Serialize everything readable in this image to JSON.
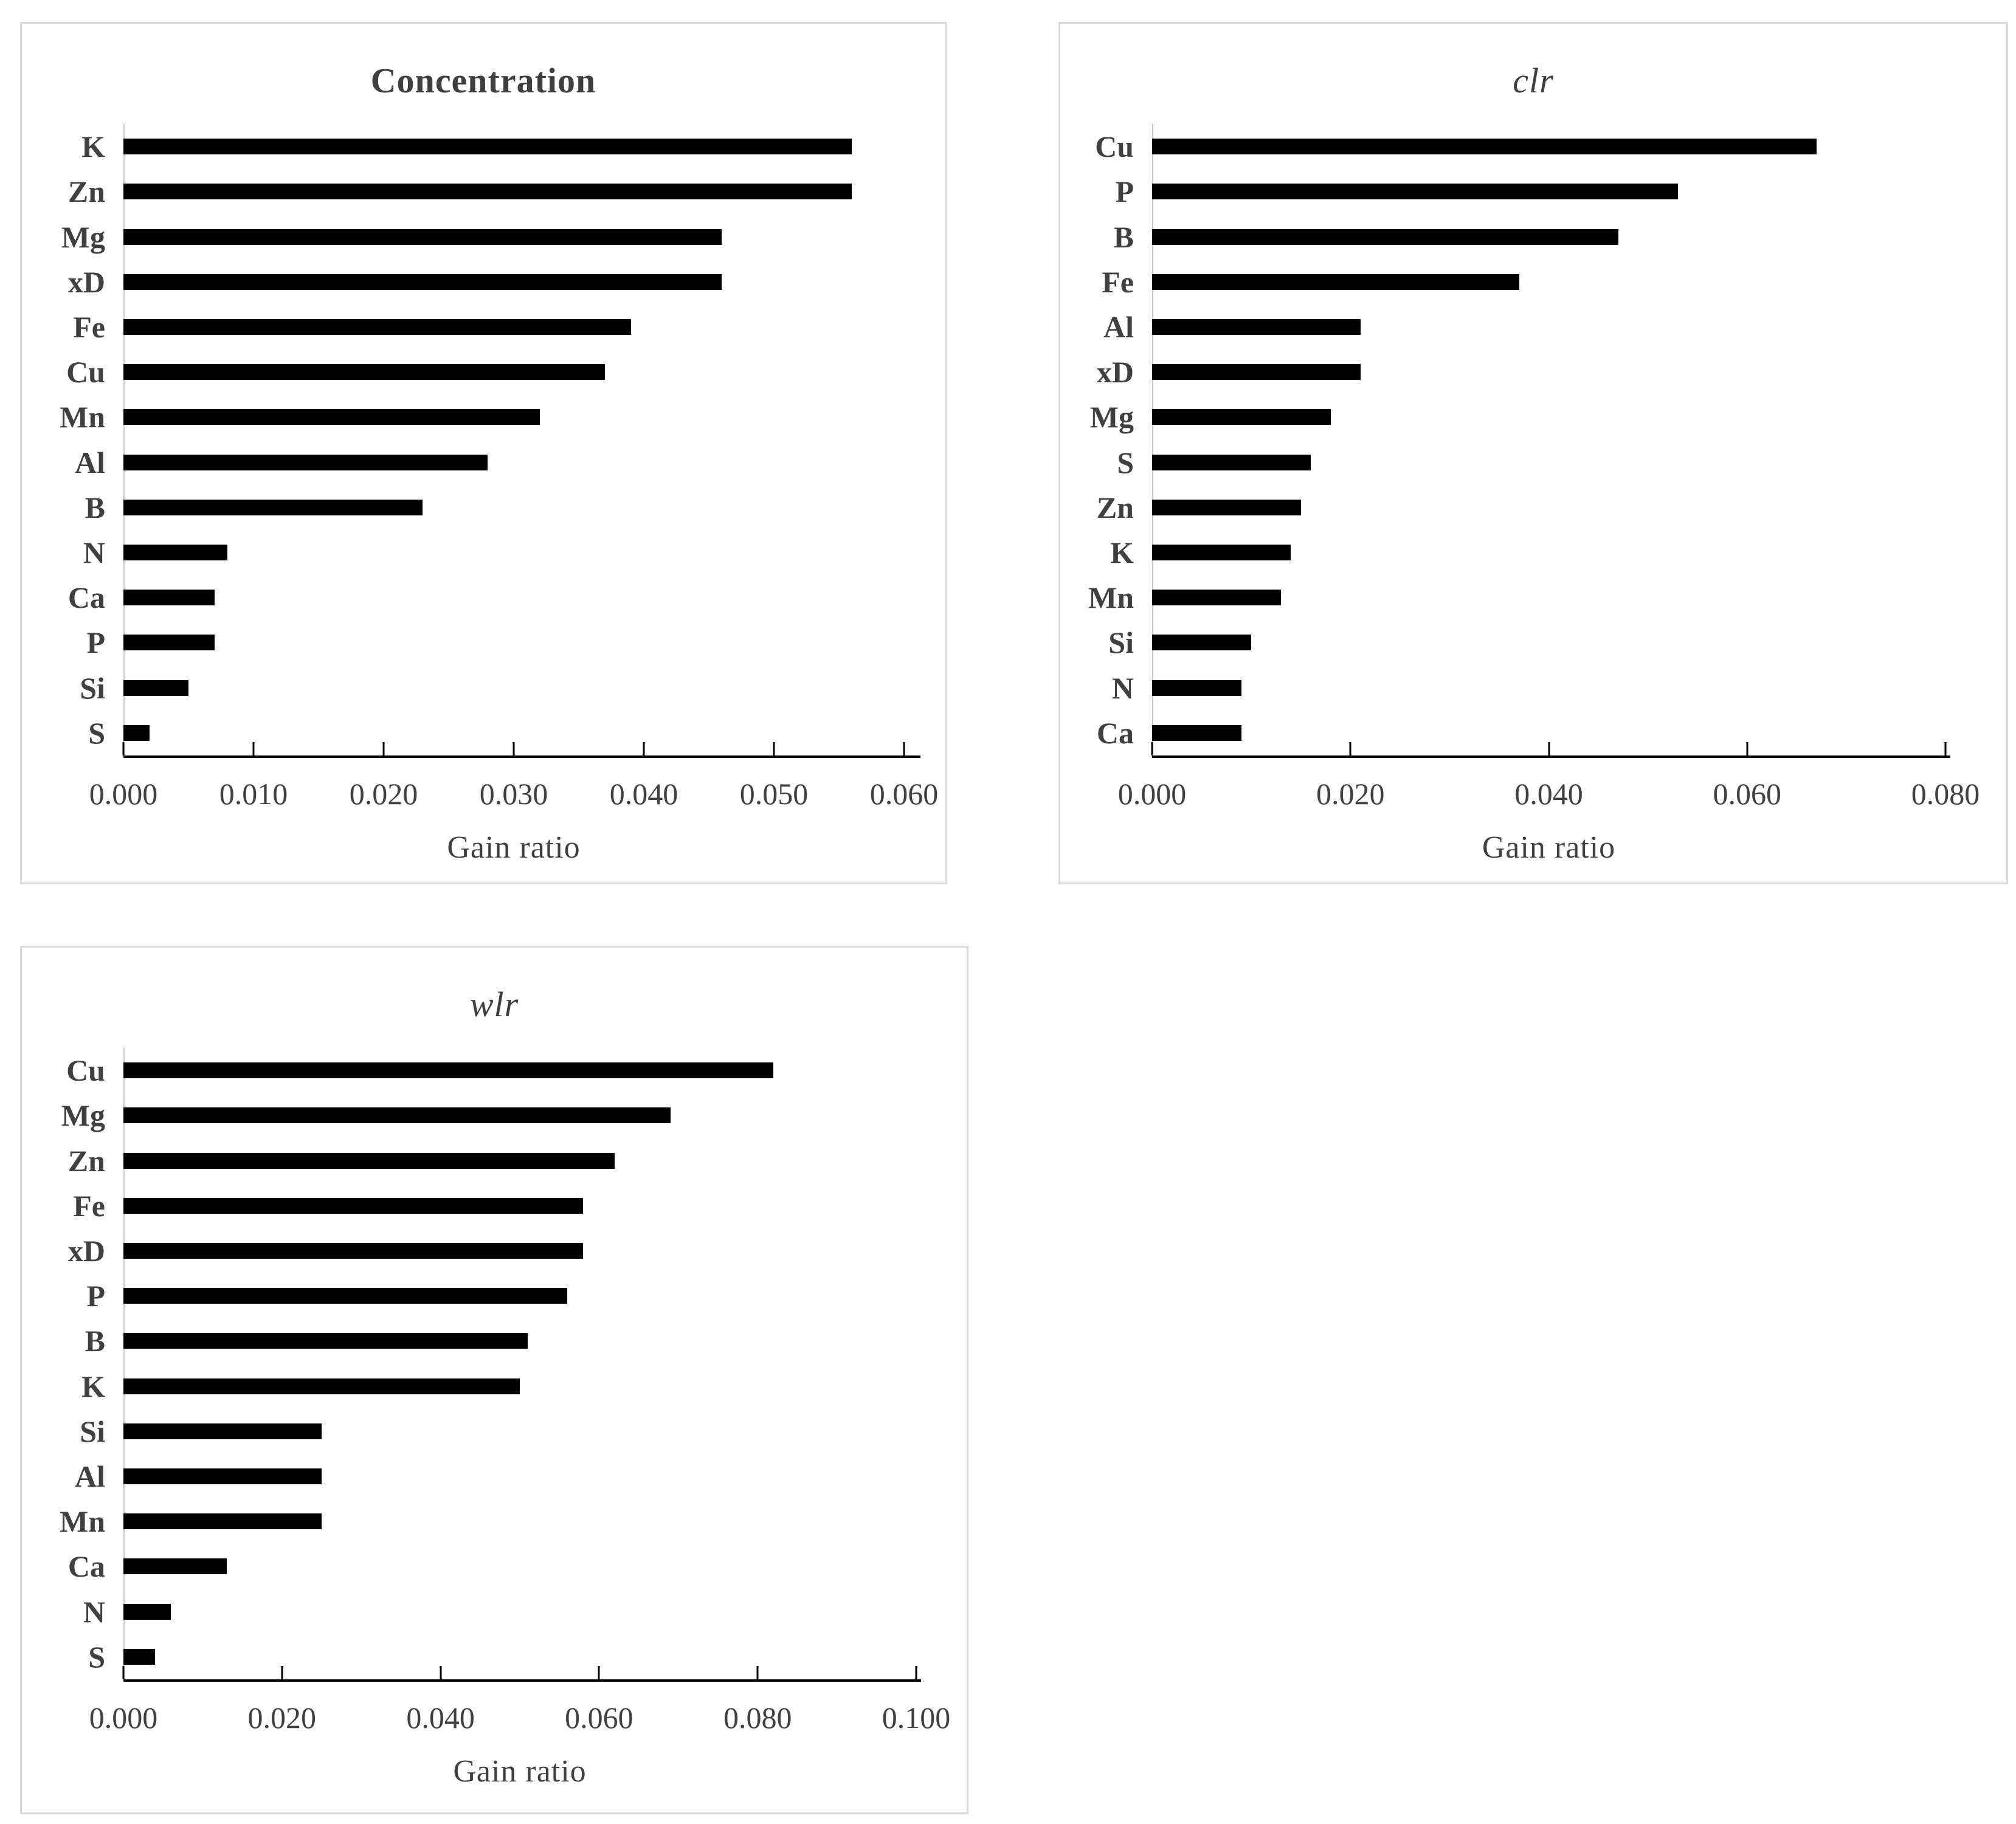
{
  "colors": {
    "bar": "#000000",
    "axis_line": "#000000",
    "text": "#404040",
    "category_axis_line": "#c9c9c9",
    "panel_border": "#d9d9d9",
    "background": "#ffffff"
  },
  "chart_data": [
    {
      "type": "bar",
      "orientation": "horizontal",
      "title": "Concentration",
      "xlabel": "Gain ratio",
      "categories": [
        "K",
        "Zn",
        "Mg",
        "xD",
        "Fe",
        "Cu",
        "Mn",
        "Al",
        "B",
        "N",
        "Ca",
        "P",
        "Si",
        "S"
      ],
      "values": [
        0.056,
        0.056,
        0.046,
        0.046,
        0.039,
        0.037,
        0.032,
        0.028,
        0.023,
        0.008,
        0.007,
        0.007,
        0.005,
        0.002
      ],
      "xlim": [
        0.0,
        0.06
      ],
      "xticks": [
        "0.000",
        "0.010",
        "0.020",
        "0.030",
        "0.040",
        "0.050",
        "0.060"
      ],
      "grid": "off",
      "legend": "none"
    },
    {
      "type": "bar",
      "orientation": "horizontal",
      "title": "clr",
      "xlabel": "Gain ratio",
      "categories": [
        "Cu",
        "P",
        "B",
        "Fe",
        "Al",
        "xD",
        "Mg",
        "S",
        "Zn",
        "K",
        "Mn",
        "Si",
        "N",
        "Ca"
      ],
      "values": [
        0.067,
        0.053,
        0.047,
        0.037,
        0.021,
        0.021,
        0.018,
        0.016,
        0.015,
        0.014,
        0.013,
        0.01,
        0.009,
        0.009
      ],
      "xlim": [
        0.0,
        0.08
      ],
      "xticks": [
        "0.000",
        "0.020",
        "0.040",
        "0.060",
        "0.080"
      ],
      "grid": "off",
      "legend": "none"
    },
    {
      "type": "bar",
      "orientation": "horizontal",
      "title": "wlr",
      "xlabel": "Gain ratio",
      "categories": [
        "Cu",
        "Mg",
        "Zn",
        "Fe",
        "xD",
        "P",
        "B",
        "K",
        "Si",
        "Al",
        "Mn",
        "Ca",
        "N",
        "S"
      ],
      "values": [
        0.082,
        0.069,
        0.062,
        0.058,
        0.058,
        0.056,
        0.051,
        0.05,
        0.025,
        0.025,
        0.025,
        0.013,
        0.006,
        0.004
      ],
      "xlim": [
        0.0,
        0.1
      ],
      "xticks": [
        "0.000",
        "0.020",
        "0.040",
        "0.060",
        "0.080",
        "0.100"
      ],
      "grid": "off",
      "legend": "none"
    }
  ]
}
